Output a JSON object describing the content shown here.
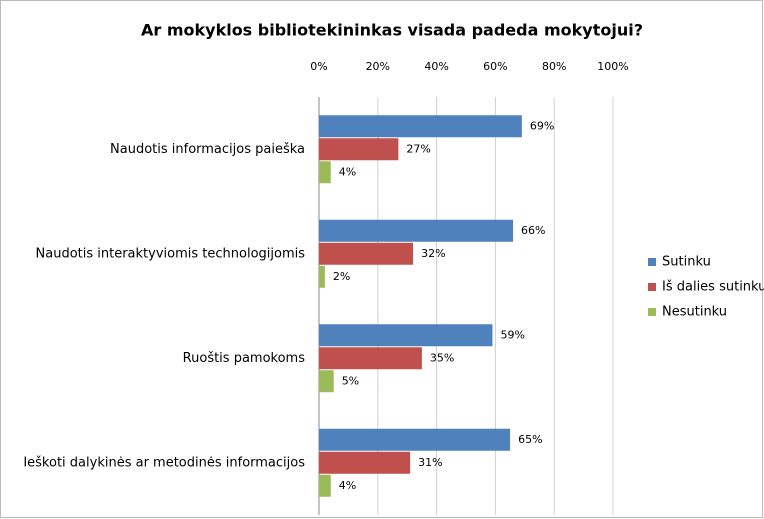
{
  "chart_data": {
    "type": "bar",
    "orientation": "horizontal",
    "title": "Ar mokyklos bibliotekininkas visada padeda mokytojui?",
    "categories": [
      "Naudotis informacijos paieška",
      "Naudotis interaktyviomis technologijomis",
      "Ruoštis pamokoms",
      "Ieškoti dalykinės ar metodinės informacijos"
    ],
    "series": [
      {
        "name": "Sutinku",
        "color": "#4f81bd",
        "values": [
          69,
          66,
          59,
          65
        ],
        "value_labels": [
          "69%",
          "66%",
          "59%",
          "65%"
        ]
      },
      {
        "name": "Iš dalies sutinku",
        "color": "#c0504d",
        "values": [
          27,
          32,
          35,
          31
        ],
        "value_labels": [
          "27%",
          "32%",
          "35%",
          "31%"
        ]
      },
      {
        "name": "Nesutinku",
        "color": "#9bbb59",
        "values": [
          4,
          2,
          5,
          4
        ],
        "value_labels": [
          "4%",
          "2%",
          "5%",
          "4%"
        ]
      }
    ],
    "xlim": [
      0,
      100
    ],
    "xticks": [
      {
        "value": 0,
        "label": "0%"
      },
      {
        "value": 20,
        "label": "20%"
      },
      {
        "value": 40,
        "label": "40%"
      },
      {
        "value": 60,
        "label": "60%"
      },
      {
        "value": 80,
        "label": "80%"
      },
      {
        "value": 100,
        "label": "100%"
      }
    ],
    "grid": true,
    "legend": "right"
  }
}
